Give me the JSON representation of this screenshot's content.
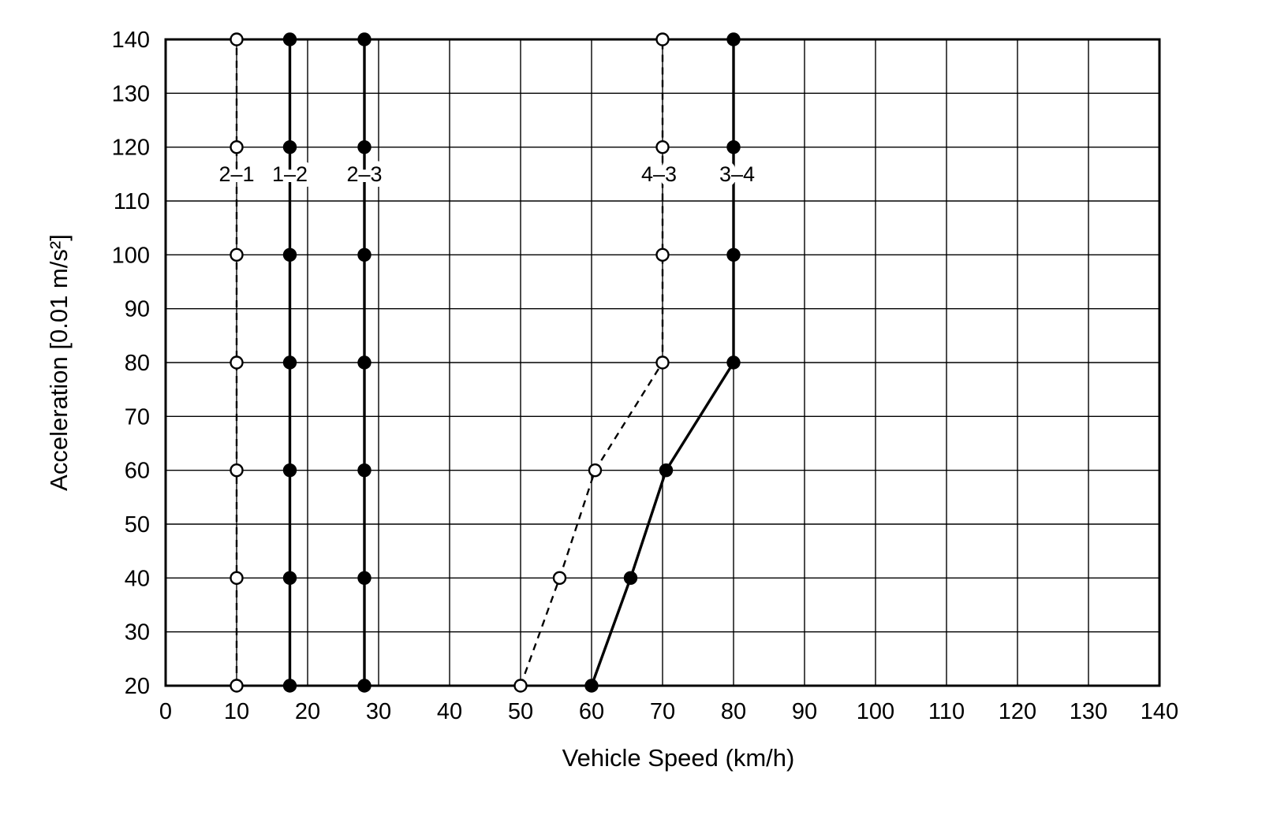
{
  "chart_data": {
    "type": "line",
    "title": "",
    "xlabel": "Vehicle Speed (km/h)",
    "ylabel": "Acceleration [0.01 m/s²]",
    "xlim": [
      0,
      140
    ],
    "ylim": [
      20,
      140
    ],
    "xticks": [
      0,
      10,
      20,
      30,
      40,
      50,
      60,
      70,
      80,
      90,
      100,
      110,
      120,
      130,
      140
    ],
    "yticks": [
      20,
      30,
      40,
      50,
      60,
      70,
      80,
      90,
      100,
      110,
      120,
      130,
      140
    ],
    "grid": true,
    "legend_position": "inline-labels",
    "line_color": "#000000",
    "background_color": "#ffffff",
    "series": [
      {
        "name": "2–1",
        "style": "dashed",
        "marker": "open-circle",
        "points": [
          [
            10,
            20
          ],
          [
            10,
            40
          ],
          [
            10,
            60
          ],
          [
            10,
            80
          ],
          [
            10,
            100
          ],
          [
            10,
            120
          ],
          [
            10,
            140
          ]
        ],
        "label_x": 10,
        "label_y": 115
      },
      {
        "name": "1–2",
        "style": "solid",
        "marker": "filled-circle",
        "points": [
          [
            17.5,
            20
          ],
          [
            17.5,
            40
          ],
          [
            17.5,
            60
          ],
          [
            17.5,
            80
          ],
          [
            17.5,
            100
          ],
          [
            17.5,
            120
          ],
          [
            17.5,
            140
          ]
        ],
        "label_x": 17.5,
        "label_y": 115
      },
      {
        "name": "2–3",
        "style": "solid",
        "marker": "filled-circle",
        "points": [
          [
            28,
            20
          ],
          [
            28,
            40
          ],
          [
            28,
            60
          ],
          [
            28,
            80
          ],
          [
            28,
            100
          ],
          [
            28,
            120
          ],
          [
            28,
            140
          ]
        ],
        "label_x": 28,
        "label_y": 115
      },
      {
        "name": "4–3",
        "style": "dashed",
        "marker": "open-circle",
        "points": [
          [
            50,
            20
          ],
          [
            55.5,
            40
          ],
          [
            60.5,
            60
          ],
          [
            70,
            80
          ],
          [
            70,
            100
          ],
          [
            70,
            120
          ],
          [
            70,
            140
          ]
        ],
        "label_x": 69.5,
        "label_y": 115
      },
      {
        "name": "3–4",
        "style": "solid",
        "marker": "filled-circle",
        "points": [
          [
            60,
            20
          ],
          [
            65.5,
            40
          ],
          [
            70.5,
            60
          ],
          [
            80,
            80
          ],
          [
            80,
            100
          ],
          [
            80,
            120
          ],
          [
            80,
            140
          ]
        ],
        "label_x": 80.5,
        "label_y": 115
      }
    ]
  }
}
